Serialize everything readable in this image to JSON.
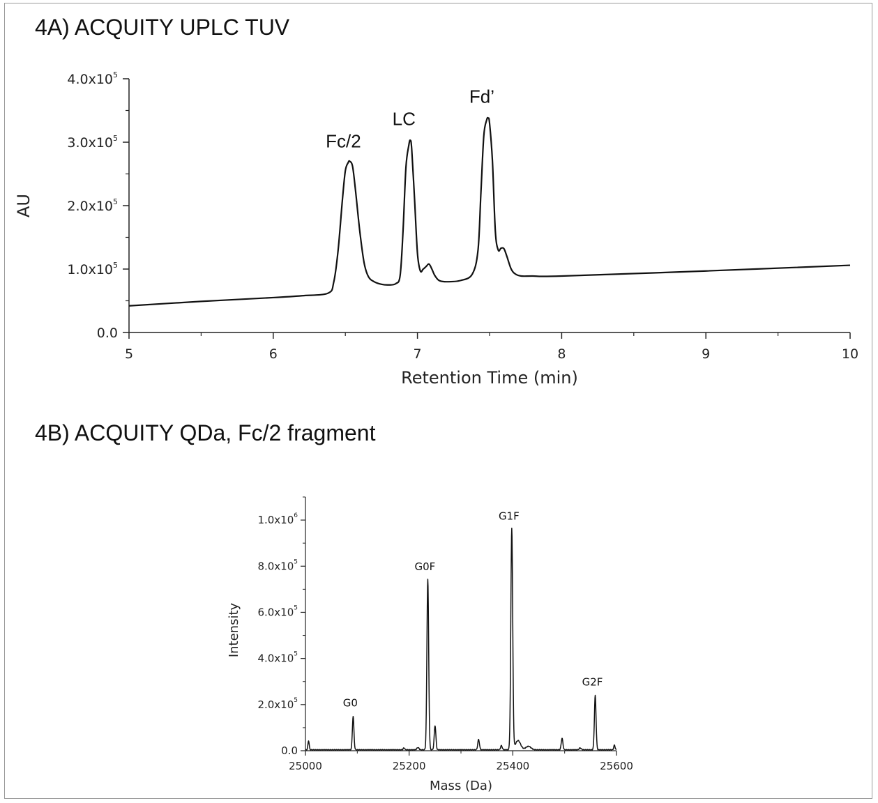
{
  "chart_data": [
    {
      "type": "line",
      "title": "4A) ACQUITY UPLC TUV",
      "xlabel": "Retention Time (min)",
      "ylabel": "AU",
      "xlim": [
        5,
        10
      ],
      "ylim": [
        0,
        400000
      ],
      "x_ticks": [
        "5",
        "6",
        "7",
        "8",
        "9",
        "10"
      ],
      "y_ticks": [
        {
          "base": "0.0",
          "exp": ""
        },
        {
          "base": "1.0x10",
          "exp": "5"
        },
        {
          "base": "2.0x10",
          "exp": "5"
        },
        {
          "base": "3.0x10",
          "exp": "5"
        },
        {
          "base": "4.0x10",
          "exp": "5"
        }
      ],
      "peak_labels": [
        {
          "text": "Fc/2",
          "x": 6.53,
          "y": 270000
        },
        {
          "text": "LC",
          "x": 6.95,
          "y": 305000
        },
        {
          "text": "Fd’",
          "x": 7.49,
          "y": 340000
        }
      ],
      "series": [
        {
          "x": [
            5.0,
            5.5,
            6.0,
            6.2,
            6.38,
            6.42,
            6.45,
            6.48,
            6.5,
            6.52,
            6.53,
            6.55,
            6.57,
            6.6,
            6.63,
            6.66,
            6.7,
            6.75,
            6.8,
            6.85,
            6.88,
            6.9,
            6.92,
            6.94,
            6.95,
            6.96,
            6.98,
            7.0,
            7.02,
            7.04,
            7.06,
            7.08,
            7.1,
            7.12,
            7.15,
            7.2,
            7.3,
            7.38,
            7.42,
            7.44,
            7.46,
            7.48,
            7.49,
            7.5,
            7.52,
            7.54,
            7.56,
            7.58,
            7.6,
            7.62,
            7.65,
            7.68,
            7.72,
            7.8,
            8.0,
            9.0,
            10.0
          ],
          "y": [
            42000,
            49000,
            55000,
            58000,
            62000,
            80000,
            130000,
            210000,
            255000,
            268000,
            270000,
            262000,
            225000,
            160000,
            110000,
            88000,
            80000,
            76000,
            75000,
            77000,
            90000,
            160000,
            260000,
            295000,
            303000,
            290000,
            210000,
            125000,
            97000,
            100000,
            104000,
            108000,
            100000,
            90000,
            82000,
            80000,
            82000,
            92000,
            130000,
            220000,
            310000,
            335000,
            338000,
            330000,
            270000,
            160000,
            130000,
            133000,
            132000,
            120000,
            100000,
            92000,
            89000,
            89000,
            89000,
            97000,
            106000
          ]
        }
      ]
    },
    {
      "type": "line",
      "title": "4B) ACQUITY QDa, Fc/2 fragment",
      "xlabel": "Mass (Da)",
      "ylabel": "Intensity",
      "xlim": [
        25000,
        25600
      ],
      "ylim": [
        0,
        1100000
      ],
      "x_ticks": [
        "25000",
        "25200",
        "25400",
        "25600"
      ],
      "y_ticks": [
        {
          "base": "0.0",
          "exp": ""
        },
        {
          "base": "2.0x10",
          "exp": "5"
        },
        {
          "base": "4.0x10",
          "exp": "5"
        },
        {
          "base": "6.0x10",
          "exp": "5"
        },
        {
          "base": "8.0x10",
          "exp": "5"
        },
        {
          "base": "1.0x10",
          "exp": "6"
        }
      ],
      "peak_labels": [
        {
          "text": "G0",
          "x": 25092,
          "y": 150000
        },
        {
          "text": "G0F",
          "x": 25236,
          "y": 740000
        },
        {
          "text": "G1F",
          "x": 25398,
          "y": 960000
        },
        {
          "text": "G2F",
          "x": 25559,
          "y": 240000
        }
      ],
      "peaks": [
        {
          "x": 25006,
          "h": 40000,
          "w": 1.2
        },
        {
          "x": 25092,
          "h": 145000,
          "w": 1.5
        },
        {
          "x": 25190,
          "h": 8000,
          "w": 1.5
        },
        {
          "x": 25217,
          "h": 10000,
          "w": 2.0
        },
        {
          "x": 25236,
          "h": 740000,
          "w": 1.7
        },
        {
          "x": 25250,
          "h": 105000,
          "w": 1.6
        },
        {
          "x": 25334,
          "h": 45000,
          "w": 1.6
        },
        {
          "x": 25378,
          "h": 18000,
          "w": 1.6
        },
        {
          "x": 25398,
          "h": 960000,
          "w": 1.8
        },
        {
          "x": 25410,
          "h": 40000,
          "w": 5.0
        },
        {
          "x": 25430,
          "h": 15000,
          "w": 5.0
        },
        {
          "x": 25495,
          "h": 50000,
          "w": 1.6
        },
        {
          "x": 25530,
          "h": 8000,
          "w": 2.0
        },
        {
          "x": 25559,
          "h": 235000,
          "w": 1.6
        },
        {
          "x": 25596,
          "h": 20000,
          "w": 1.3
        }
      ]
    }
  ]
}
